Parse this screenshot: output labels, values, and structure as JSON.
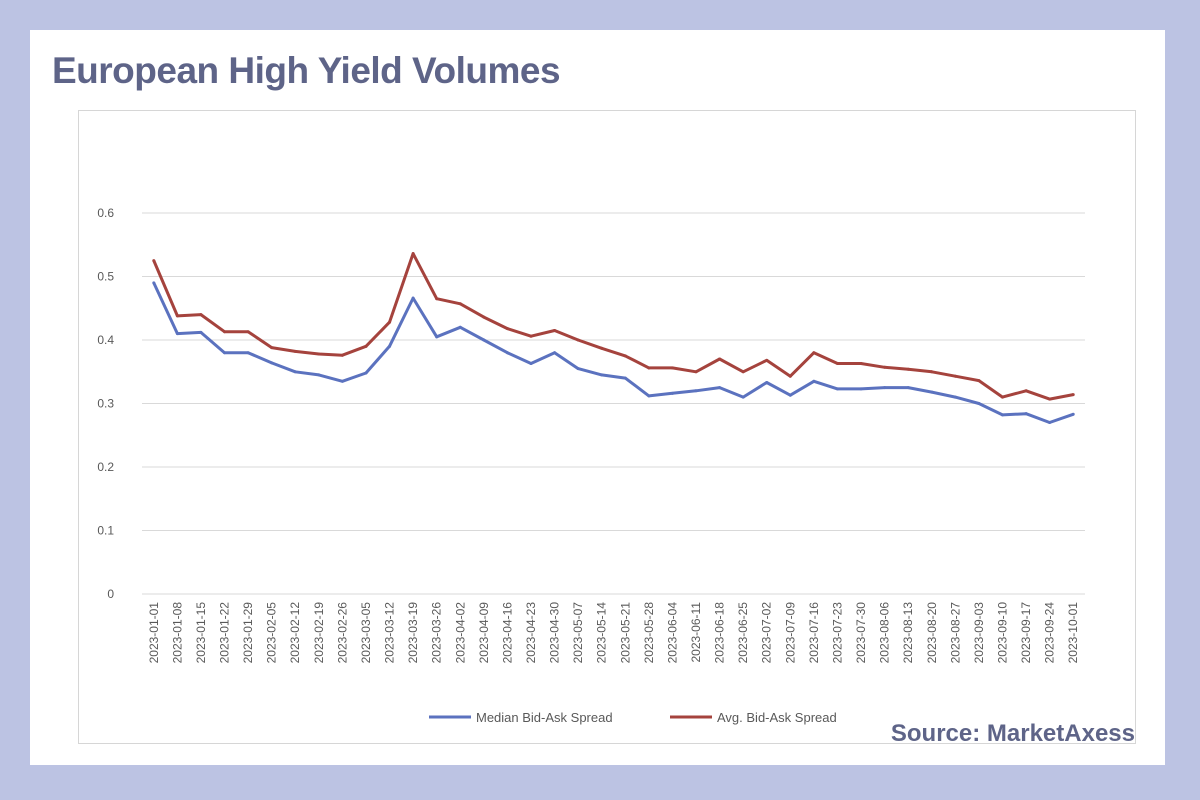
{
  "title": "European High Yield Volumes",
  "source": "Source: MarketAxess",
  "colors": {
    "background": "#bcc3e3",
    "card": "#ffffff",
    "title_text": "#5e6488",
    "median_line": "#5b72bf",
    "avg_line": "#a5433d",
    "gridline": "#d9d9d9"
  },
  "chart_data": {
    "type": "line",
    "title": "",
    "xlabel": "",
    "ylabel": "",
    "ylim": [
      0,
      0.6
    ],
    "yticks": [
      "0",
      "0.1",
      "0.2",
      "0.3",
      "0.4",
      "0.5",
      "0.6"
    ],
    "grid": true,
    "legend_position": "bottom",
    "categories": [
      "2023-01-01",
      "2023-01-08",
      "2023-01-15",
      "2023-01-22",
      "2023-01-29",
      "2023-02-05",
      "2023-02-12",
      "2023-02-19",
      "2023-02-26",
      "2023-03-05",
      "2023-03-12",
      "2023-03-19",
      "2023-03-26",
      "2023-04-02",
      "2023-04-09",
      "2023-04-16",
      "2023-04-23",
      "2023-04-30",
      "2023-05-07",
      "2023-05-14",
      "2023-05-21",
      "2023-05-28",
      "2023-06-04",
      "2023-06-11",
      "2023-06-18",
      "2023-06-25",
      "2023-07-02",
      "2023-07-09",
      "2023-07-16",
      "2023-07-23",
      "2023-07-30",
      "2023-08-06",
      "2023-08-13",
      "2023-08-20",
      "2023-08-27",
      "2023-09-03",
      "2023-09-10",
      "2023-09-17",
      "2023-09-24",
      "2023-10-01"
    ],
    "series": [
      {
        "name": "Median Bid-Ask Spread",
        "color": "#5b72bf",
        "values": [
          0.49,
          0.41,
          0.412,
          0.38,
          0.38,
          0.364,
          0.35,
          0.345,
          0.335,
          0.348,
          0.39,
          0.466,
          0.405,
          0.42,
          0.4,
          0.38,
          0.363,
          0.38,
          0.355,
          0.345,
          0.34,
          0.312,
          0.316,
          0.32,
          0.325,
          0.31,
          0.333,
          0.313,
          0.335,
          0.323,
          0.323,
          0.325,
          0.325,
          0.318,
          0.31,
          0.3,
          0.282,
          0.284,
          0.27,
          0.283
        ]
      },
      {
        "name": "Avg. Bid-Ask Spread",
        "color": "#a5433d",
        "values": [
          0.525,
          0.438,
          0.44,
          0.413,
          0.413,
          0.388,
          0.382,
          0.378,
          0.376,
          0.39,
          0.428,
          0.536,
          0.465,
          0.457,
          0.436,
          0.418,
          0.406,
          0.415,
          0.4,
          0.387,
          0.375,
          0.356,
          0.356,
          0.35,
          0.37,
          0.35,
          0.368,
          0.343,
          0.38,
          0.363,
          0.363,
          0.357,
          0.354,
          0.35,
          0.343,
          0.336,
          0.31,
          0.32,
          0.307,
          0.314
        ]
      }
    ]
  }
}
